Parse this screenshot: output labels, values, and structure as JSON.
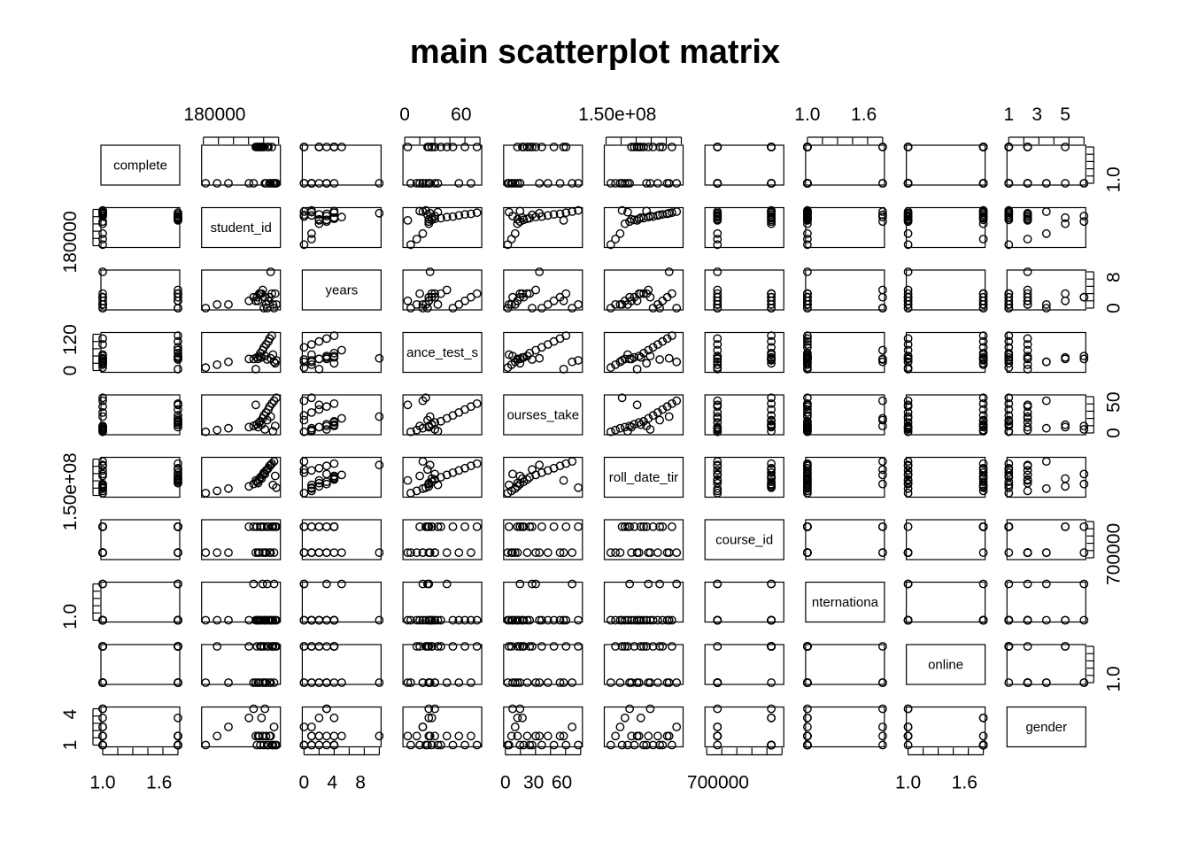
{
  "chart_data": {
    "type": "scatter",
    "title": "main scatterplot matrix",
    "grid": false,
    "variables": [
      "complete",
      "student_id",
      "years",
      "entrance_test_score",
      "courses_taken",
      "enroll_date_time",
      "course_id",
      "international",
      "online",
      "gender"
    ],
    "diagonal_labels": [
      "complete",
      "student_id",
      "years",
      "ance_test_s",
      "ourses_take",
      "roll_date_tir",
      "course_id",
      "nternationa",
      "online",
      "gender"
    ],
    "axis_tick_labels": {
      "top": [
        {
          "var": 1,
          "labels": [
            "180000"
          ]
        },
        {
          "var": 3,
          "labels": [
            "0",
            "60"
          ]
        },
        {
          "var": 5,
          "labels": [
            "1.50e+08"
          ]
        },
        {
          "var": 7,
          "labels": [
            "1.0",
            "1.6"
          ]
        },
        {
          "var": 9,
          "labels": [
            "1",
            "3",
            "5"
          ]
        }
      ],
      "bottom": [
        {
          "var": 0,
          "labels": [
            "1.0",
            "1.6"
          ]
        },
        {
          "var": 2,
          "labels": [
            "0",
            "4",
            "8"
          ]
        },
        {
          "var": 4,
          "labels": [
            "0",
            "30",
            "60"
          ]
        },
        {
          "var": 6,
          "labels": [
            "700000"
          ]
        },
        {
          "var": 8,
          "labels": [
            "1.0",
            "1.6"
          ]
        }
      ],
      "left": [
        {
          "var": 1,
          "labels": [
            "180000"
          ]
        },
        {
          "var": 3,
          "labels": [
            "0",
            "120"
          ]
        },
        {
          "var": 5,
          "labels": [
            "1.50e+08"
          ]
        },
        {
          "var": 7,
          "labels": [
            "1.0"
          ]
        },
        {
          "var": 9,
          "labels": [
            "1",
            "4"
          ]
        }
      ],
      "right": [
        {
          "var": 0,
          "labels": [
            "1.0"
          ]
        },
        {
          "var": 2,
          "labels": [
            "0",
            "8"
          ]
        },
        {
          "var": 4,
          "labels": [
            "0",
            "50"
          ]
        },
        {
          "var": 6,
          "labels": [
            "700000"
          ]
        },
        {
          "var": 8,
          "labels": [
            "1.0"
          ]
        }
      ]
    },
    "series": [
      {
        "var": "complete",
        "values": [
          1,
          1,
          1,
          1,
          1,
          2,
          2,
          2,
          2,
          2,
          1,
          2,
          1,
          2,
          1,
          1,
          2,
          2,
          1,
          2,
          1,
          1,
          2,
          1
        ]
      },
      {
        "var": "student_id",
        "values": [
          140000,
          150000,
          160000,
          178000,
          182000,
          185000,
          187000,
          188000,
          190000,
          191000,
          193000,
          195000,
          196000,
          198000,
          200000,
          202000,
          186000,
          189000,
          192000,
          194000,
          197000,
          199000,
          184000,
          201000
        ]
      },
      {
        "var": "years",
        "values": [
          0,
          1,
          1,
          2,
          3,
          3,
          4,
          4,
          5,
          0,
          1,
          2,
          3,
          4,
          0,
          1,
          2,
          4,
          3,
          0,
          10,
          1,
          2,
          4
        ]
      },
      {
        "var": "entrance_test_score",
        "values": [
          10,
          20,
          30,
          40,
          40,
          45,
          50,
          60,
          70,
          80,
          90,
          100,
          110,
          120,
          30,
          35,
          40,
          45,
          50,
          38,
          42,
          55,
          5,
          25
        ]
      },
      {
        "var": "courses_taken",
        "values": [
          2,
          5,
          8,
          10,
          12,
          15,
          18,
          20,
          25,
          30,
          35,
          40,
          45,
          50,
          55,
          60,
          10,
          14,
          6,
          22,
          28,
          3,
          48,
          12
        ]
      },
      {
        "var": "enroll_date_time",
        "values": [
          148000000,
          148500000,
          149000000,
          149500000,
          150000000,
          150500000,
          151000000,
          151500000,
          152000000,
          152500000,
          153000000,
          153500000,
          154000000,
          154500000,
          155000000,
          149200000,
          150200000,
          151200000,
          152200000,
          153200000,
          154200000,
          149800000,
          150800000,
          151800000
        ]
      },
      {
        "var": "course_id",
        "values": [
          680000,
          680000,
          680000,
          730000,
          730000,
          730000,
          680000,
          730000,
          680000,
          730000,
          680000,
          730000,
          680000,
          730000,
          680000,
          730000,
          680000,
          730000,
          680000,
          730000,
          680000,
          730000,
          680000,
          730000
        ]
      },
      {
        "var": "international",
        "values": [
          1,
          1,
          1,
          1,
          2,
          1,
          1,
          1,
          2,
          1,
          1,
          1,
          1,
          1,
          2,
          1,
          1,
          1,
          1,
          2,
          1,
          1,
          1,
          1
        ]
      },
      {
        "var": "online",
        "values": [
          1,
          2,
          1,
          2,
          1,
          2,
          1,
          2,
          1,
          2,
          1,
          2,
          1,
          2,
          1,
          2,
          1,
          2,
          1,
          2,
          1,
          2,
          1,
          2
        ]
      },
      {
        "var": "gender",
        "values": [
          1,
          2,
          3,
          4,
          5,
          1,
          2,
          1,
          2,
          1,
          2,
          1,
          2,
          1,
          3,
          1,
          2,
          4,
          5,
          1,
          2,
          1,
          2,
          1
        ]
      }
    ],
    "ranges": [
      [
        1,
        2
      ],
      [
        138000,
        204000
      ],
      [
        0,
        10
      ],
      [
        0,
        125
      ],
      [
        0,
        62
      ],
      [
        147500000,
        155500000
      ],
      [
        670000,
        740000
      ],
      [
        1,
        2
      ],
      [
        1,
        2
      ],
      [
        1,
        5
      ]
    ],
    "point_marker": "open circle",
    "colors": {
      "points": "#000000",
      "frame": "#000000",
      "background": "#ffffff"
    }
  }
}
